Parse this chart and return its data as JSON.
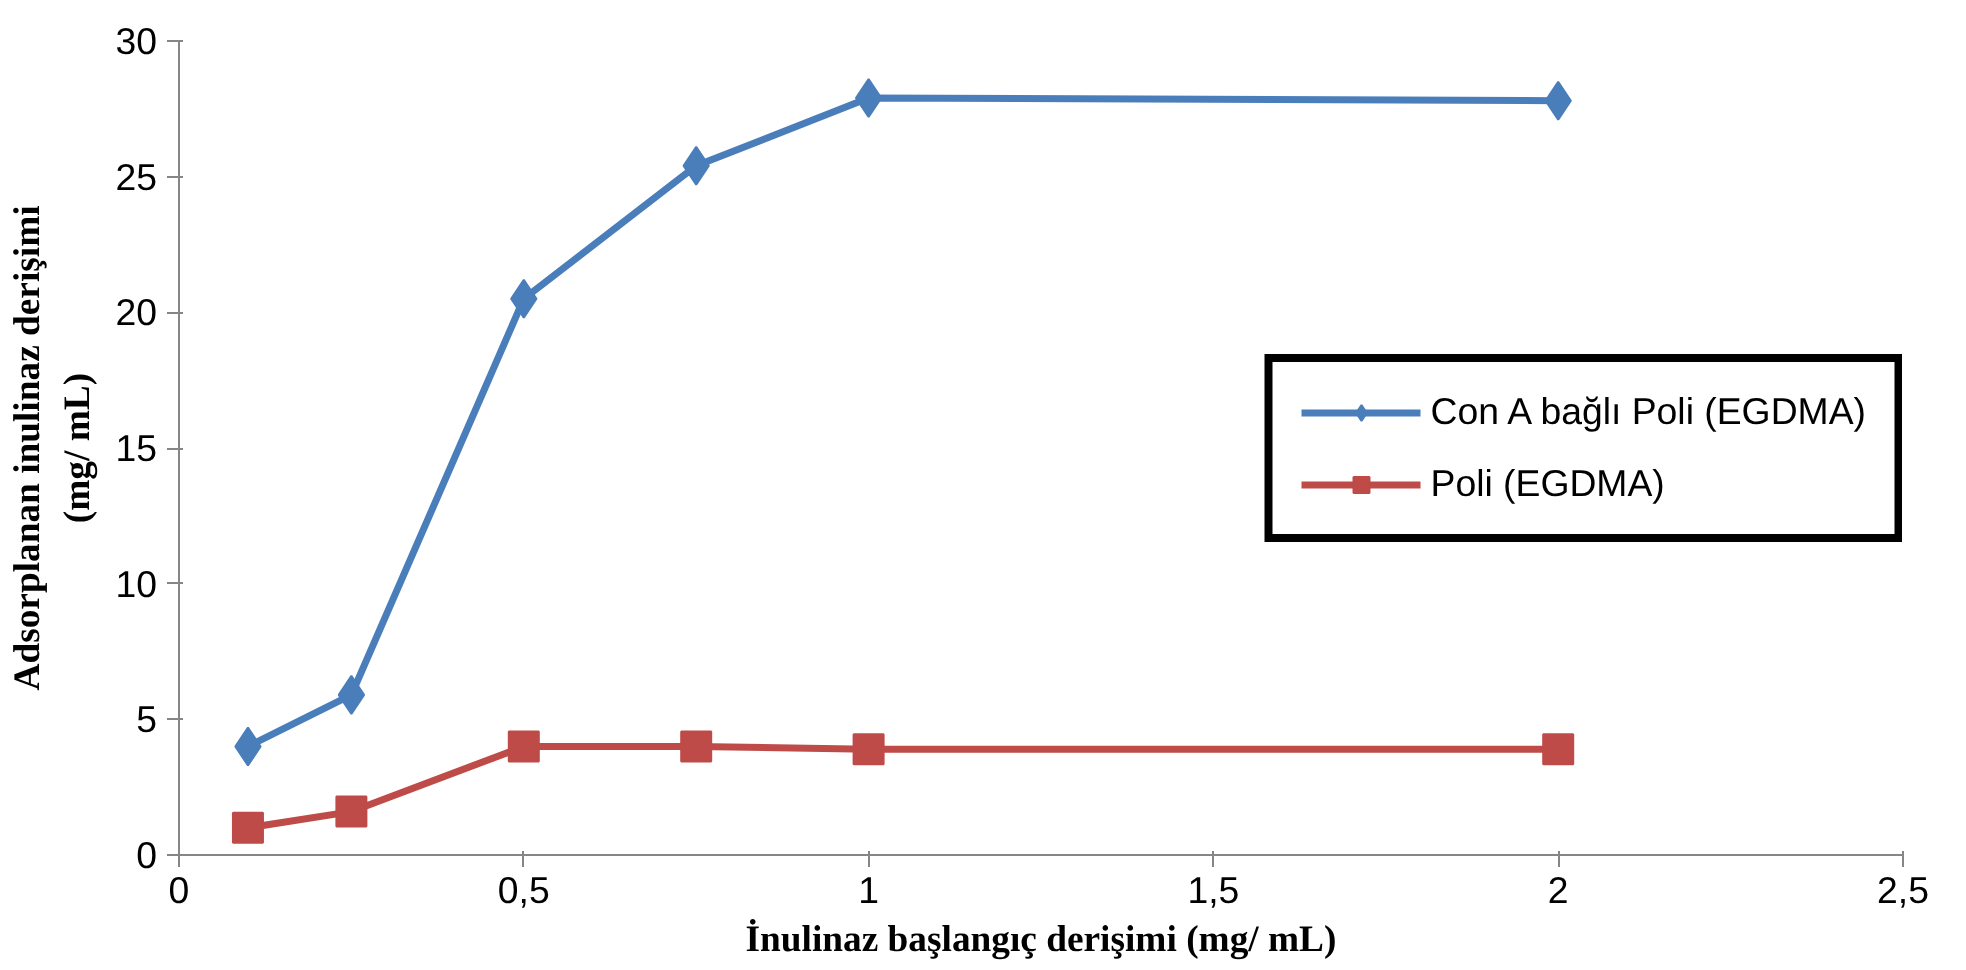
{
  "chart_data": {
    "type": "line",
    "xlabel": "İnulinaz başlangıç derişimi (mg/ mL)",
    "ylabel": "Adsorplanan inulinaz derişimi\n(mg/ mL)",
    "x": [
      0.1,
      0.25,
      0.5,
      0.75,
      1,
      2
    ],
    "series": [
      {
        "name": "Con A bağlı Poli (EGDMA)",
        "color": "#4a7ebb",
        "marker": "diamond",
        "values": [
          4.0,
          5.9,
          20.5,
          25.4,
          27.9,
          27.8
        ]
      },
      {
        "name": "Poli (EGDMA)",
        "color": "#be4b48",
        "marker": "square",
        "values": [
          1.0,
          1.6,
          4.0,
          4.0,
          3.9,
          3.9
        ]
      }
    ],
    "xlim": [
      0,
      2.5
    ],
    "xticks": [
      0,
      {
        "value": 0.5,
        "label": "0,5"
      },
      1,
      {
        "value": 1.5,
        "label": "1,5"
      },
      2,
      {
        "value": 2.5,
        "label": "2,5"
      }
    ],
    "ylim": [
      0,
      30
    ],
    "yticks": [
      0,
      5,
      10,
      15,
      20,
      25,
      30
    ],
    "grid": false,
    "legend": "right",
    "line_style": "solid"
  }
}
